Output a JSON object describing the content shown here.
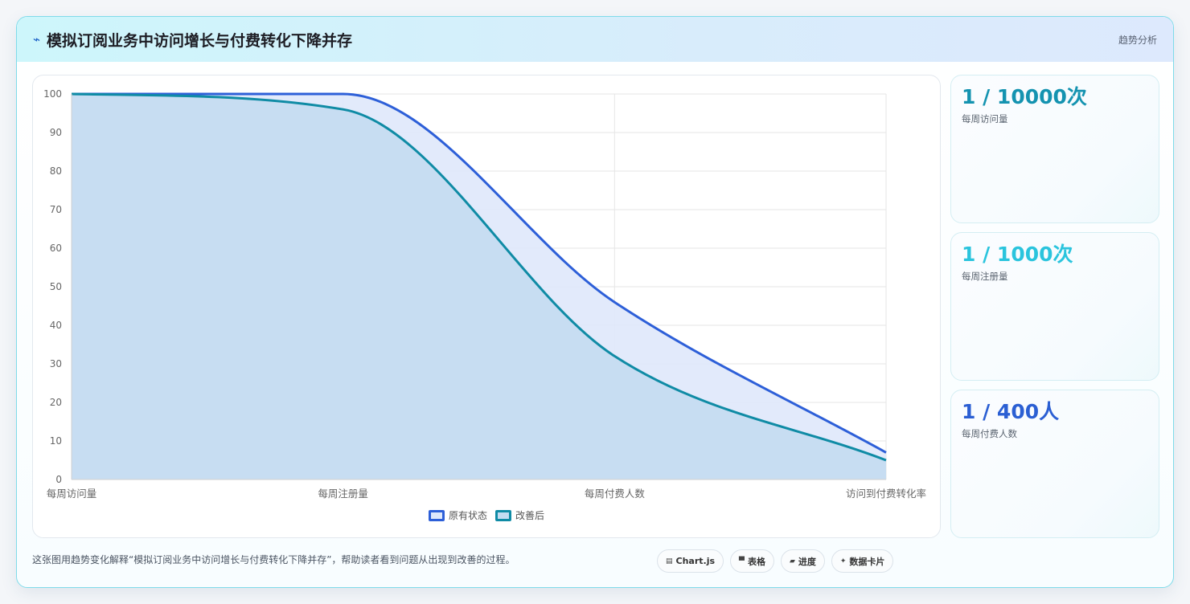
{
  "header": {
    "icon": "line-chart-icon",
    "icon_glyph": "⌁",
    "title": "模拟订阅业务中访问增长与付费转化下降并存",
    "tag": "趋势分析"
  },
  "chart_data": {
    "type": "area",
    "categories": [
      "每周访问量",
      "每周注册量",
      "每周付费人数",
      "访问到付费转化率"
    ],
    "series": [
      {
        "name": "原有状态",
        "values": [
          100,
          100,
          46,
          7
        ],
        "stroke": "#2d5fd8",
        "fill": "#dfe8fb"
      },
      {
        "name": "改善后",
        "values": [
          100,
          96,
          32,
          5
        ],
        "stroke": "#0f8ba5",
        "fill": "#c4dcf1"
      }
    ],
    "ylim": [
      0,
      100
    ],
    "yticks": [
      0,
      10,
      20,
      30,
      40,
      50,
      60,
      70,
      80,
      90,
      100
    ],
    "grid": true,
    "legend": "bottom"
  },
  "stats": [
    {
      "value": "1 / 10000次",
      "label": "每周访问量",
      "color": "#1493b0"
    },
    {
      "value": "1 / 1000次",
      "label": "每周注册量",
      "color": "#2ac4dd"
    },
    {
      "value": "1 / 400人",
      "label": "每周付费人数",
      "color": "#2b5fd3"
    }
  ],
  "footer": {
    "text": "这张图用趋势变化解释“模拟订阅业务中访问增长与付费转化下降并存”，帮助读者看到问题从出现到改善的过程。",
    "chips": [
      {
        "icon": "chart-icon",
        "glyph": "▤",
        "label": "Chart.js"
      },
      {
        "icon": "table-icon",
        "glyph": "▀",
        "label": "表格"
      },
      {
        "icon": "progress-icon",
        "glyph": "▰",
        "label": "进度"
      },
      {
        "icon": "sparkle-icon",
        "glyph": "✦",
        "label": "数据卡片"
      }
    ]
  }
}
